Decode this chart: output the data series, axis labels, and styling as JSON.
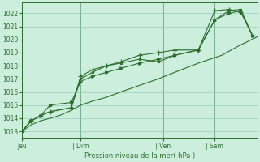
{
  "background_color": "#cceedd",
  "grid_color": "#99ccbb",
  "line_color": "#2d6e2d",
  "title": "Pression niveau de la mer( hPa )",
  "ylim": [
    1012.5,
    1022.8
  ],
  "yticks": [
    1013,
    1014,
    1015,
    1016,
    1017,
    1018,
    1019,
    1020,
    1021,
    1022
  ],
  "xtick_labels": [
    "Jeu",
    "| Dim",
    "| Ven",
    "| Sam"
  ],
  "xtick_positions": [
    0.0,
    0.25,
    0.6,
    0.82
  ],
  "xlim": [
    0.0,
    1.0
  ],
  "series1_x": [
    0.0,
    0.04,
    0.08,
    0.12,
    0.16,
    0.21,
    0.25,
    0.3,
    0.36,
    0.42,
    0.5,
    0.58,
    0.65,
    0.75,
    0.85,
    0.92,
    1.0
  ],
  "series1_y": [
    1013.0,
    1013.5,
    1013.8,
    1014.0,
    1014.2,
    1014.6,
    1015.0,
    1015.3,
    1015.6,
    1016.0,
    1016.5,
    1017.0,
    1017.5,
    1018.2,
    1018.8,
    1019.5,
    1020.2
  ],
  "series2_x": [
    0.0,
    0.04,
    0.08,
    0.12,
    0.21,
    0.25,
    0.3,
    0.36,
    0.42,
    0.5,
    0.58,
    0.65,
    0.75,
    0.82,
    0.88,
    0.93,
    0.98
  ],
  "series2_y": [
    1013.0,
    1013.8,
    1014.2,
    1014.5,
    1014.8,
    1017.0,
    1017.5,
    1018.0,
    1018.2,
    1018.5,
    1018.3,
    1018.8,
    1019.2,
    1021.5,
    1022.2,
    1022.3,
    1020.3
  ],
  "series3_x": [
    0.0,
    0.04,
    0.08,
    0.12,
    0.21,
    0.25,
    0.3,
    0.36,
    0.42,
    0.5,
    0.58,
    0.65,
    0.75,
    0.82,
    0.88,
    0.93,
    0.98
  ],
  "series3_y": [
    1013.0,
    1013.8,
    1014.2,
    1014.5,
    1014.8,
    1017.2,
    1017.7,
    1018.0,
    1018.3,
    1018.8,
    1019.0,
    1019.2,
    1019.2,
    1022.2,
    1022.3,
    1022.1,
    1020.3
  ],
  "series4_x": [
    0.0,
    0.04,
    0.08,
    0.12,
    0.21,
    0.25,
    0.3,
    0.36,
    0.42,
    0.5,
    0.58,
    0.65,
    0.75,
    0.82,
    0.88,
    0.93,
    0.98
  ],
  "series4_y": [
    1013.0,
    1013.8,
    1014.2,
    1015.0,
    1015.2,
    1016.8,
    1017.2,
    1017.5,
    1017.8,
    1018.2,
    1018.5,
    1018.8,
    1019.2,
    1021.5,
    1022.0,
    1022.2,
    1020.3
  ],
  "vline_positions": [
    0.25,
    0.6,
    0.82
  ]
}
